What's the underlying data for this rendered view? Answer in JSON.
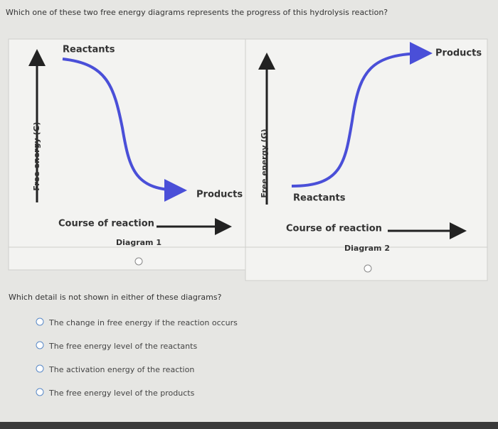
{
  "question1": "Which one of these two free energy diagrams represents the progress of this hydrolysis reaction?",
  "diagrams": [
    {
      "y_axis": "Free energy (G)",
      "x_axis": "Course of reaction",
      "start_label": "Reactants",
      "end_label": "Products",
      "caption": "Diagram 1"
    },
    {
      "y_axis": "Free energy (G)",
      "x_axis": "Course of reaction",
      "start_label": "Reactants",
      "end_label": "Products",
      "caption": "Diagram 2"
    }
  ],
  "question2": "Which detail is not shown in either of these diagrams?",
  "options": [
    "The change in free energy if the reaction occurs",
    "The free energy level of the reactants",
    "The activation energy of the reaction",
    "The free energy level of the products"
  ]
}
